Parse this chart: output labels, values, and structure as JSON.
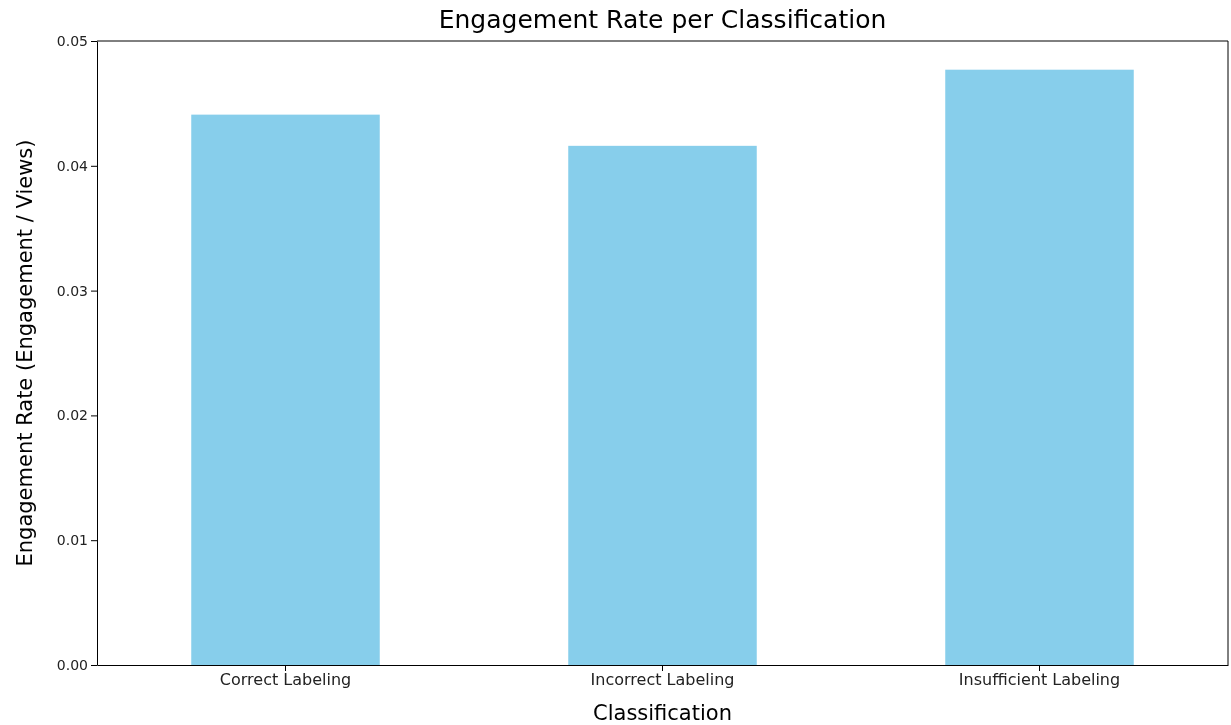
{
  "chart_data": {
    "type": "bar",
    "title": "Engagement Rate per Classification",
    "xlabel": "Classification",
    "ylabel": "Engagement Rate (Engagement / Views)",
    "categories": [
      "Correct Labeling",
      "Incorrect Labeling",
      "Insufficient Labeling"
    ],
    "values": [
      0.0441,
      0.0416,
      0.0477
    ],
    "color": "#87ceeb",
    "ylim": [
      0,
      0.05
    ],
    "yticks": [
      {
        "value": 0,
        "label": "0.00"
      },
      {
        "value": 0.01,
        "label": "0.01"
      },
      {
        "value": 0.02,
        "label": "0.02"
      },
      {
        "value": 0.03,
        "label": "0.03"
      },
      {
        "value": 0.04,
        "label": "0.04"
      },
      {
        "value": 0.05,
        "label": "0.05"
      }
    ],
    "grid": false
  }
}
